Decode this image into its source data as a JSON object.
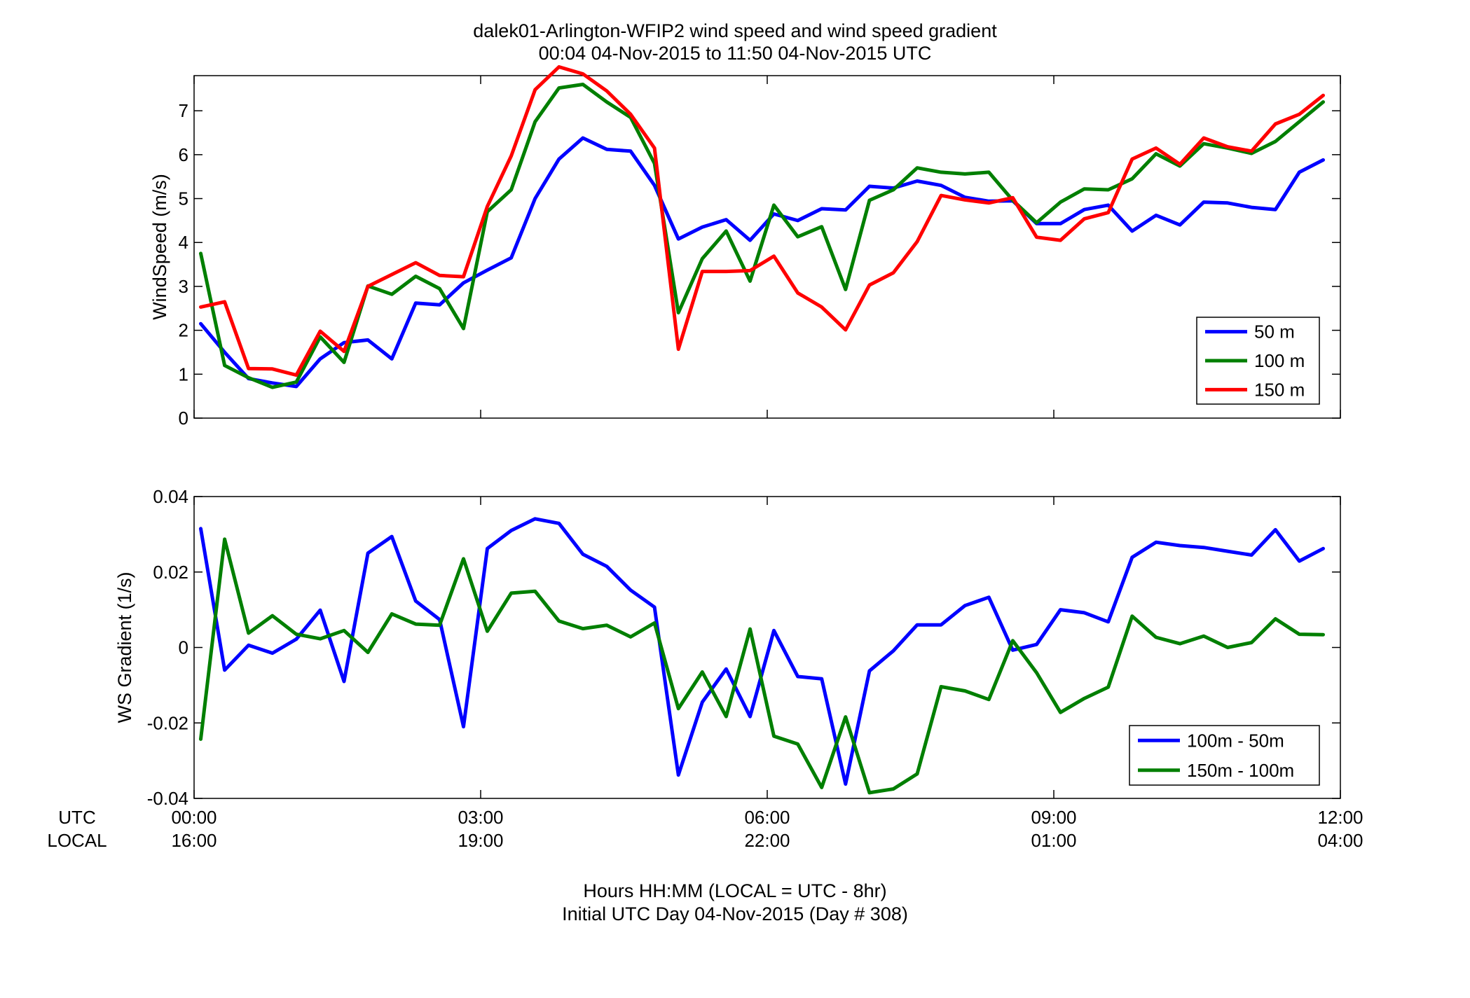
{
  "title": "dalek01-Arlington-WFIP2  wind speed and wind speed gradient",
  "subtitle": "00:04 04-Nov-2015 to 11:50 04-Nov-2015  UTC",
  "footer": {
    "line1": "Hours HH:MM  (LOCAL = UTC - 8hr)",
    "line2": "Initial UTC Day 04-Nov-2015 (Day # 308)"
  },
  "axis_row_labels": {
    "utc": "UTC",
    "local": "LOCAL"
  },
  "colors": {
    "blue": "#0000ff",
    "green": "#007f00",
    "red": "#ff0000"
  },
  "chart_data": [
    {
      "type": "line",
      "ylabel": "WindSpeed (m/s)",
      "xlim": [
        0,
        12
      ],
      "ylim": [
        0,
        7.8
      ],
      "yticks": [
        0,
        1,
        2,
        3,
        4,
        5,
        6,
        7
      ],
      "xticks": [
        0,
        3,
        6,
        9,
        12
      ],
      "xtick_labels_utc": [
        "00:00",
        "03:00",
        "06:00",
        "09:00",
        "12:00"
      ],
      "xtick_labels_local": [
        "16:00",
        "19:00",
        "22:00",
        "01:00",
        "04:00"
      ],
      "legend_position": "bottom-right",
      "x": [
        0.07,
        0.32,
        0.57,
        0.82,
        1.07,
        1.32,
        1.57,
        1.82,
        2.07,
        2.32,
        2.57,
        2.82,
        3.07,
        3.32,
        3.57,
        3.82,
        4.07,
        4.32,
        4.57,
        4.82,
        5.07,
        5.32,
        5.57,
        5.82,
        6.07,
        6.32,
        6.57,
        6.82,
        7.07,
        7.32,
        7.57,
        7.82,
        8.07,
        8.32,
        8.57,
        8.82,
        9.07,
        9.32,
        9.57,
        9.82,
        10.07,
        10.32,
        10.57,
        10.82,
        11.07,
        11.32,
        11.57,
        11.82
      ],
      "series": [
        {
          "name": "50 m",
          "color": "#0000ff",
          "values": [
            2.15,
            1.5,
            0.9,
            0.8,
            0.72,
            1.35,
            1.72,
            1.78,
            1.35,
            2.62,
            2.58,
            3.08,
            3.37,
            3.65,
            5.0,
            5.9,
            6.38,
            6.12,
            6.08,
            5.3,
            4.08,
            4.35,
            4.52,
            4.05,
            4.65,
            4.5,
            4.77,
            4.74,
            5.28,
            5.24,
            5.4,
            5.3,
            5.03,
            4.94,
            4.95,
            4.43,
            4.43,
            4.75,
            4.85,
            4.26,
            4.62,
            4.4,
            4.92,
            4.9,
            4.8,
            4.75,
            5.6,
            5.88
          ]
        },
        {
          "name": "100 m",
          "color": "#007f00",
          "values": [
            3.75,
            1.2,
            0.92,
            0.7,
            0.82,
            1.85,
            1.27,
            3.01,
            2.82,
            3.23,
            2.95,
            2.04,
            4.7,
            5.2,
            6.75,
            7.52,
            7.6,
            7.2,
            6.85,
            5.8,
            2.4,
            3.63,
            4.26,
            3.12,
            4.85,
            4.13,
            4.36,
            2.93,
            4.96,
            5.2,
            5.7,
            5.6,
            5.56,
            5.6,
            4.96,
            4.45,
            4.92,
            5.22,
            5.2,
            5.45,
            6.02,
            5.74,
            6.25,
            6.15,
            6.03,
            6.3,
            6.75,
            7.2
          ]
        },
        {
          "name": "150 m",
          "color": "#ff0000",
          "values": [
            2.53,
            2.65,
            1.13,
            1.12,
            0.98,
            1.98,
            1.52,
            3.0,
            3.27,
            3.54,
            3.25,
            3.22,
            4.82,
            5.97,
            7.48,
            8.0,
            7.84,
            7.45,
            6.92,
            6.15,
            1.57,
            3.34,
            3.34,
            3.36,
            3.69,
            2.85,
            2.53,
            2.01,
            3.03,
            3.31,
            4.02,
            5.07,
            4.97,
            4.9,
            5.02,
            4.12,
            4.05,
            4.54,
            4.68,
            5.9,
            6.15,
            5.78,
            6.38,
            6.18,
            6.08,
            6.7,
            6.92,
            7.35
          ]
        }
      ]
    },
    {
      "type": "line",
      "ylabel": "WS Gradient (1/s)",
      "xlim": [
        0,
        12
      ],
      "ylim": [
        -0.04,
        0.04
      ],
      "yticks": [
        -0.04,
        -0.02,
        0,
        0.02,
        0.04
      ],
      "ytick_labels": [
        "-0.04",
        "-0.02",
        "0",
        "0.02",
        "0.04"
      ],
      "xticks": [
        0,
        3,
        6,
        9,
        12
      ],
      "xtick_labels_utc": [
        "00:00",
        "03:00",
        "06:00",
        "09:00",
        "12:00"
      ],
      "xtick_labels_local": [
        "16:00",
        "19:00",
        "22:00",
        "01:00",
        "04:00"
      ],
      "legend_position": "bottom-right",
      "x": [
        0.07,
        0.32,
        0.57,
        0.82,
        1.07,
        1.32,
        1.57,
        1.82,
        2.07,
        2.32,
        2.57,
        2.82,
        3.07,
        3.32,
        3.57,
        3.82,
        4.07,
        4.32,
        4.57,
        4.82,
        5.07,
        5.32,
        5.57,
        5.82,
        6.07,
        6.32,
        6.57,
        6.82,
        7.07,
        7.32,
        7.57,
        7.82,
        8.07,
        8.32,
        8.57,
        8.82,
        9.07,
        9.32,
        9.57,
        9.82,
        10.07,
        10.32,
        10.57,
        10.82,
        11.07,
        11.32,
        11.57,
        11.82
      ],
      "series": [
        {
          "name": "100m - 50m",
          "color": "#0000ff",
          "values": [
            0.0315,
            -0.006,
            0.0006,
            -0.0015,
            0.0022,
            0.0099,
            -0.009,
            0.025,
            0.0294,
            0.0123,
            0.0074,
            -0.021,
            0.0262,
            0.031,
            0.0341,
            0.0329,
            0.0247,
            0.0215,
            0.0152,
            0.0107,
            -0.0338,
            -0.0145,
            -0.0057,
            -0.0183,
            0.0045,
            -0.0077,
            -0.0083,
            -0.0362,
            -0.0062,
            -0.0009,
            0.006,
            0.006,
            0.0111,
            0.0133,
            -0.0007,
            0.0008,
            0.01,
            0.0092,
            0.0068,
            0.0239,
            0.0279,
            0.027,
            0.0265,
            0.0255,
            0.0245,
            0.0312,
            0.0229,
            0.0262
          ]
        },
        {
          "name": "150m - 100m",
          "color": "#007f00",
          "values": [
            -0.0243,
            0.0287,
            0.0038,
            0.0084,
            0.0035,
            0.0023,
            0.0045,
            -0.0013,
            0.0089,
            0.0062,
            0.0059,
            0.0235,
            0.0043,
            0.0144,
            0.0149,
            0.007,
            0.005,
            0.0059,
            0.0028,
            0.0065,
            -0.0162,
            -0.0065,
            -0.0183,
            0.0049,
            -0.0235,
            -0.0256,
            -0.0371,
            -0.0184,
            -0.0385,
            -0.0375,
            -0.0335,
            -0.0104,
            -0.0115,
            -0.0138,
            0.0018,
            -0.0067,
            -0.0172,
            -0.0135,
            -0.0105,
            0.0083,
            0.0027,
            0.001,
            0.003,
            0.0,
            0.0013,
            0.0076,
            0.0035,
            0.0034
          ]
        }
      ]
    }
  ]
}
